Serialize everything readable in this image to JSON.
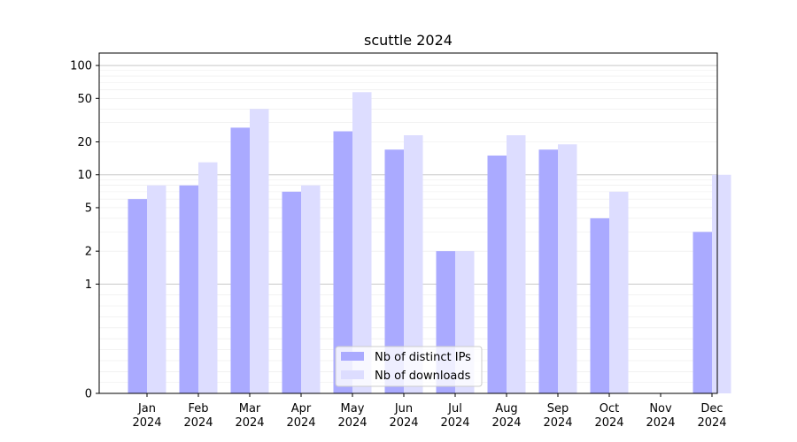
{
  "chart_data": {
    "type": "bar",
    "title": "scuttle 2024",
    "categories": [
      "Jan",
      "Feb",
      "Mar",
      "Apr",
      "May",
      "Jun",
      "Jul",
      "Aug",
      "Sep",
      "Oct",
      "Nov",
      "Dec"
    ],
    "category_year": "2024",
    "series": [
      {
        "name": "Nb of distinct IPs",
        "color": "#aaaaff",
        "values": [
          6,
          8,
          27,
          7,
          25,
          17,
          2,
          15,
          17,
          4,
          0,
          3
        ]
      },
      {
        "name": "Nb of downloads",
        "color": "#ddddff",
        "values": [
          8,
          13,
          40,
          8,
          57,
          23,
          2,
          23,
          19,
          7,
          0,
          10
        ]
      }
    ],
    "y_scale": "symlog",
    "y_ticks": [
      0,
      1,
      2,
      5,
      10,
      20,
      50,
      100
    ],
    "ylim": [
      0,
      130
    ],
    "grid": true,
    "legend_position": "bottom-center"
  }
}
